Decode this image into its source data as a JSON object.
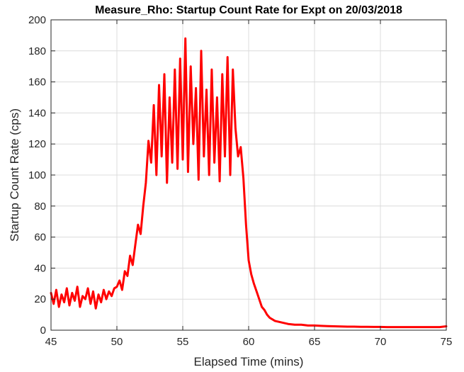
{
  "chart_data": {
    "type": "line",
    "title": "Measure_Rho: Startup Count Rate for Expt on 20/03/2018",
    "xlabel": "Elapsed Time (mins)",
    "ylabel": "Startup Count Rate (cps)",
    "xlim": [
      45,
      75
    ],
    "ylim": [
      0,
      200
    ],
    "xticks": [
      45,
      50,
      55,
      60,
      65,
      70,
      75
    ],
    "yticks": [
      0,
      20,
      40,
      60,
      80,
      100,
      120,
      140,
      160,
      180,
      200
    ],
    "grid": true,
    "series_color": "#ff0000",
    "series": [
      {
        "x": [
          45.0,
          45.2,
          45.4,
          45.6,
          45.8,
          46.0,
          46.2,
          46.4,
          46.6,
          46.8,
          47.0,
          47.2,
          47.4,
          47.6,
          47.8,
          48.0,
          48.2,
          48.4,
          48.6,
          48.8,
          49.0,
          49.2,
          49.4,
          49.6,
          49.8,
          50.0,
          50.2,
          50.4,
          50.6,
          50.8,
          51.0,
          51.2,
          51.4,
          51.6,
          51.8,
          52.0,
          52.2,
          52.4,
          52.6,
          52.8,
          53.0,
          53.2,
          53.4,
          53.6,
          53.8,
          54.0,
          54.2,
          54.4,
          54.6,
          54.8,
          55.0,
          55.2,
          55.4,
          55.6,
          55.8,
          56.0,
          56.2,
          56.4,
          56.6,
          56.8,
          57.0,
          57.2,
          57.4,
          57.6,
          57.8,
          58.0,
          58.2,
          58.4,
          58.6,
          58.8,
          59.0,
          59.2,
          59.4,
          59.6,
          59.8,
          60.0,
          60.2,
          60.4,
          60.6,
          60.8,
          61.0,
          61.2,
          61.4,
          61.6,
          61.8,
          62.0,
          62.5,
          63.0,
          63.5,
          64.0,
          64.5,
          65.0,
          65.5,
          66.0,
          66.5,
          67.0,
          67.5,
          68.0,
          68.5,
          69.0,
          69.5,
          70.0,
          70.5,
          71.0,
          71.5,
          72.0,
          72.5,
          73.0,
          73.5,
          74.0,
          74.5,
          75.0
        ],
        "values": [
          24,
          17,
          26,
          15,
          23,
          18,
          27,
          16,
          24,
          19,
          28,
          15,
          22,
          20,
          27,
          17,
          25,
          14,
          23,
          18,
          26,
          20,
          25,
          22,
          27,
          28,
          32,
          26,
          38,
          35,
          48,
          42,
          55,
          68,
          62,
          80,
          95,
          122,
          108,
          145,
          100,
          158,
          112,
          165,
          95,
          150,
          108,
          168,
          104,
          175,
          110,
          188,
          102,
          170,
          120,
          156,
          97,
          180,
          112,
          155,
          100,
          168,
          108,
          150,
          96,
          165,
          112,
          176,
          100,
          168,
          130,
          112,
          118,
          98,
          68,
          45,
          36,
          30,
          25,
          20,
          15,
          13,
          10,
          8,
          7,
          6,
          5,
          4,
          3.5,
          3.5,
          3,
          3,
          2.8,
          2.6,
          2.5,
          2.4,
          2.3,
          2.3,
          2.2,
          2.2,
          2.1,
          2.1,
          2,
          2,
          2,
          2,
          2,
          2,
          2,
          2,
          2,
          2.5
        ]
      }
    ]
  }
}
